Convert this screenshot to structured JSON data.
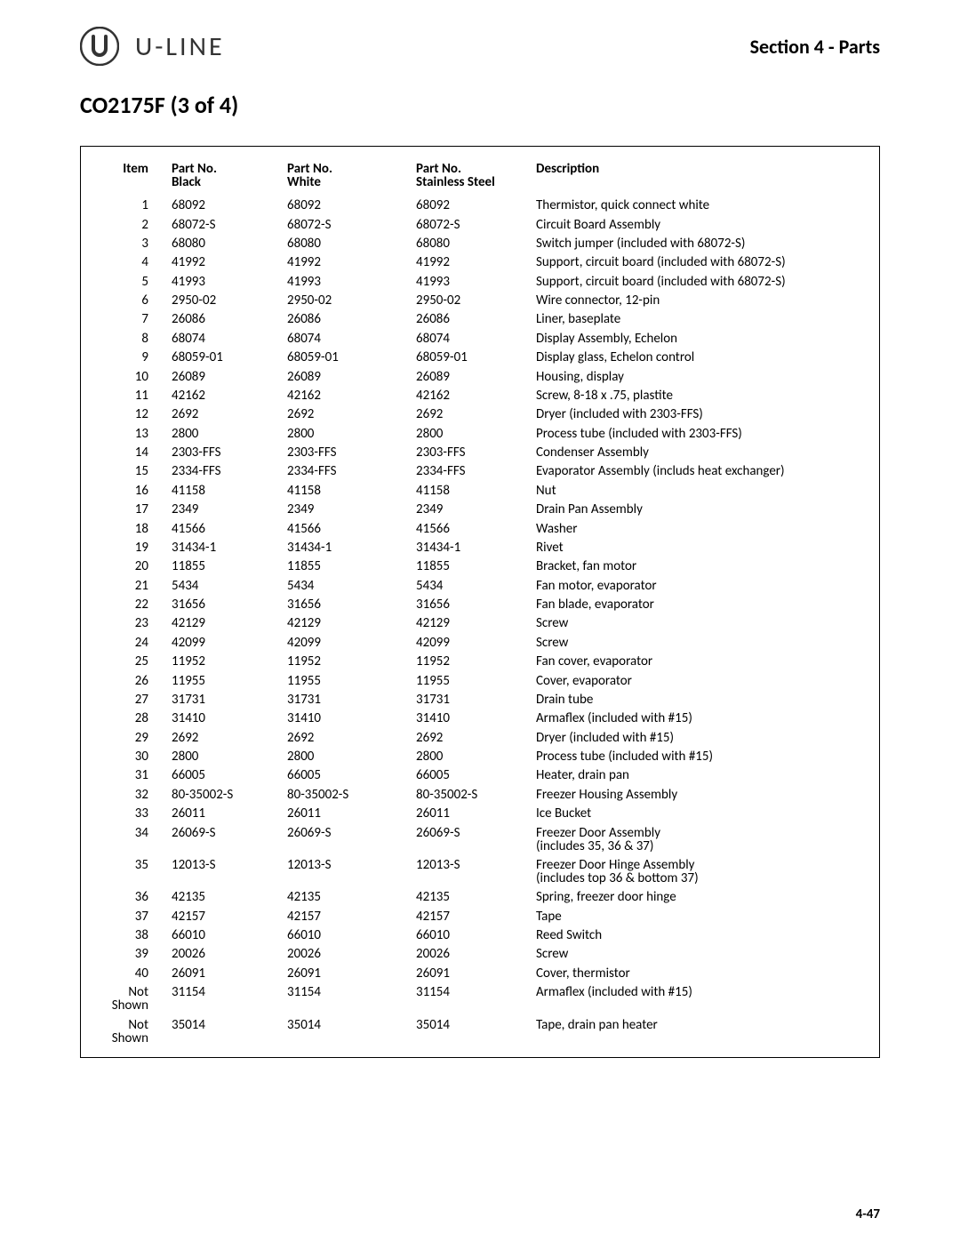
{
  "brand": "U-LINE",
  "section_label": "Section 4 - Parts",
  "part_heading": "CO2175F (3 of 4)",
  "page_number": "4-47",
  "table": {
    "columns": [
      {
        "label": "Item",
        "sub": ""
      },
      {
        "label": "Part No.",
        "sub": "Black"
      },
      {
        "label": "Part No.",
        "sub": "White"
      },
      {
        "label": "Part No.",
        "sub": "Stainless Steel"
      },
      {
        "label": "Description",
        "sub": ""
      }
    ],
    "rows": [
      {
        "item": "1",
        "black": "68092",
        "white": "68092",
        "ss": "68092",
        "desc": "Thermistor, quick connect white"
      },
      {
        "item": "2",
        "black": "68072-S",
        "white": "68072-S",
        "ss": "68072-S",
        "desc": "Circuit Board Assembly"
      },
      {
        "item": "3",
        "black": "68080",
        "white": "68080",
        "ss": "68080",
        "desc": "Switch jumper (included with 68072-S)"
      },
      {
        "item": "4",
        "black": "41992",
        "white": "41992",
        "ss": "41992",
        "desc": "Support, circuit board (included with 68072-S)"
      },
      {
        "item": "5",
        "black": "41993",
        "white": "41993",
        "ss": "41993",
        "desc": "Support, circuit board (included with 68072-S)"
      },
      {
        "item": "6",
        "black": "2950-02",
        "white": "2950-02",
        "ss": "2950-02",
        "desc": "Wire connector, 12-pin"
      },
      {
        "item": "7",
        "black": "26086",
        "white": "26086",
        "ss": "26086",
        "desc": "Liner, baseplate"
      },
      {
        "item": "8",
        "black": "68074",
        "white": "68074",
        "ss": "68074",
        "desc": "Display Assembly, Echelon"
      },
      {
        "item": "9",
        "black": "68059-01",
        "white": "68059-01",
        "ss": "68059-01",
        "desc": "Display glass, Echelon control"
      },
      {
        "item": "10",
        "black": "26089",
        "white": "26089",
        "ss": "26089",
        "desc": "Housing, display"
      },
      {
        "item": "11",
        "black": "42162",
        "white": "42162",
        "ss": "42162",
        "desc": "Screw, 8-18 x .75, plastite"
      },
      {
        "item": "12",
        "black": "2692",
        "white": "2692",
        "ss": "2692",
        "desc": "Dryer (included with 2303-FFS)"
      },
      {
        "item": "13",
        "black": "2800",
        "white": "2800",
        "ss": "2800",
        "desc": "Process tube (included with 2303-FFS)"
      },
      {
        "item": "14",
        "black": "2303-FFS",
        "white": "2303-FFS",
        "ss": "2303-FFS",
        "desc": "Condenser Assembly"
      },
      {
        "item": "15",
        "black": "2334-FFS",
        "white": "2334-FFS",
        "ss": "2334-FFS",
        "desc": "Evaporator Assembly (includs heat exchanger)"
      },
      {
        "item": "16",
        "black": "41158",
        "white": "41158",
        "ss": "41158",
        "desc": "Nut"
      },
      {
        "item": "17",
        "black": "2349",
        "white": "2349",
        "ss": "2349",
        "desc": "Drain Pan Assembly"
      },
      {
        "item": "18",
        "black": "41566",
        "white": "41566",
        "ss": "41566",
        "desc": "Washer"
      },
      {
        "item": "19",
        "black": "31434-1",
        "white": "31434-1",
        "ss": "31434-1",
        "desc": "Rivet"
      },
      {
        "item": "20",
        "black": "11855",
        "white": "11855",
        "ss": "11855",
        "desc": "Bracket, fan motor"
      },
      {
        "item": "21",
        "black": "5434",
        "white": "5434",
        "ss": "5434",
        "desc": "Fan motor, evaporator"
      },
      {
        "item": "22",
        "black": "31656",
        "white": "31656",
        "ss": "31656",
        "desc": "Fan blade, evaporator"
      },
      {
        "item": "23",
        "black": "42129",
        "white": "42129",
        "ss": "42129",
        "desc": "Screw"
      },
      {
        "item": "24",
        "black": "42099",
        "white": "42099",
        "ss": "42099",
        "desc": "Screw"
      },
      {
        "item": "25",
        "black": "11952",
        "white": "11952",
        "ss": "11952",
        "desc": "Fan cover, evaporator"
      },
      {
        "item": "26",
        "black": "11955",
        "white": "11955",
        "ss": "11955",
        "desc": "Cover, evaporator"
      },
      {
        "item": "27",
        "black": "31731",
        "white": "31731",
        "ss": "31731",
        "desc": "Drain tube"
      },
      {
        "item": "28",
        "black": "31410",
        "white": "31410",
        "ss": "31410",
        "desc": "Armaflex (included with #15)"
      },
      {
        "item": "29",
        "black": "2692",
        "white": "2692",
        "ss": "2692",
        "desc": "Dryer (included with #15)"
      },
      {
        "item": "30",
        "black": "2800",
        "white": "2800",
        "ss": "2800",
        "desc": "Process tube (included with #15)"
      },
      {
        "item": "31",
        "black": "66005",
        "white": "66005",
        "ss": "66005",
        "desc": "Heater, drain pan"
      },
      {
        "item": "32",
        "black": "80-35002-S",
        "white": "80-35002-S",
        "ss": "80-35002-S",
        "desc": "Freezer Housing Assembly"
      },
      {
        "item": "33",
        "black": "26011",
        "white": "26011",
        "ss": "26011",
        "desc": "Ice Bucket"
      },
      {
        "item": "34",
        "black": "26069-S",
        "white": "26069-S",
        "ss": "26069-S",
        "desc": "Freezer Door Assembly\n(includes 35, 36 & 37)"
      },
      {
        "item": "35",
        "black": "12013-S",
        "white": "12013-S",
        "ss": "12013-S",
        "desc": "Freezer Door Hinge Assembly\n(includes top 36 & bottom 37)"
      },
      {
        "item": "36",
        "black": "42135",
        "white": "42135",
        "ss": "42135",
        "desc": "Spring, freezer door hinge"
      },
      {
        "item": "37",
        "black": "42157",
        "white": "42157",
        "ss": "42157",
        "desc": "Tape"
      },
      {
        "item": "38",
        "black": "66010",
        "white": "66010",
        "ss": "66010",
        "desc": "Reed Switch"
      },
      {
        "item": "39",
        "black": "20026",
        "white": "20026",
        "ss": "20026",
        "desc": "Screw"
      },
      {
        "item": "40",
        "black": "26091",
        "white": "26091",
        "ss": "26091",
        "desc": "Cover, thermistor"
      },
      {
        "item": "Not\nShown",
        "black": "31154",
        "white": "31154",
        "ss": "31154",
        "desc": "Armaflex (included with #15)"
      },
      {
        "item": "Not\nShown",
        "black": "35014",
        "white": "35014",
        "ss": "35014",
        "desc": "Tape, drain pan heater"
      }
    ]
  },
  "style": {
    "page_bg": "#ffffff",
    "text_color": "#000000",
    "border_color": "#000000",
    "heading_fontsize_pt": 20,
    "section_fontsize_pt": 17,
    "body_fontsize_pt": 11,
    "font_family": "Gill Sans"
  }
}
